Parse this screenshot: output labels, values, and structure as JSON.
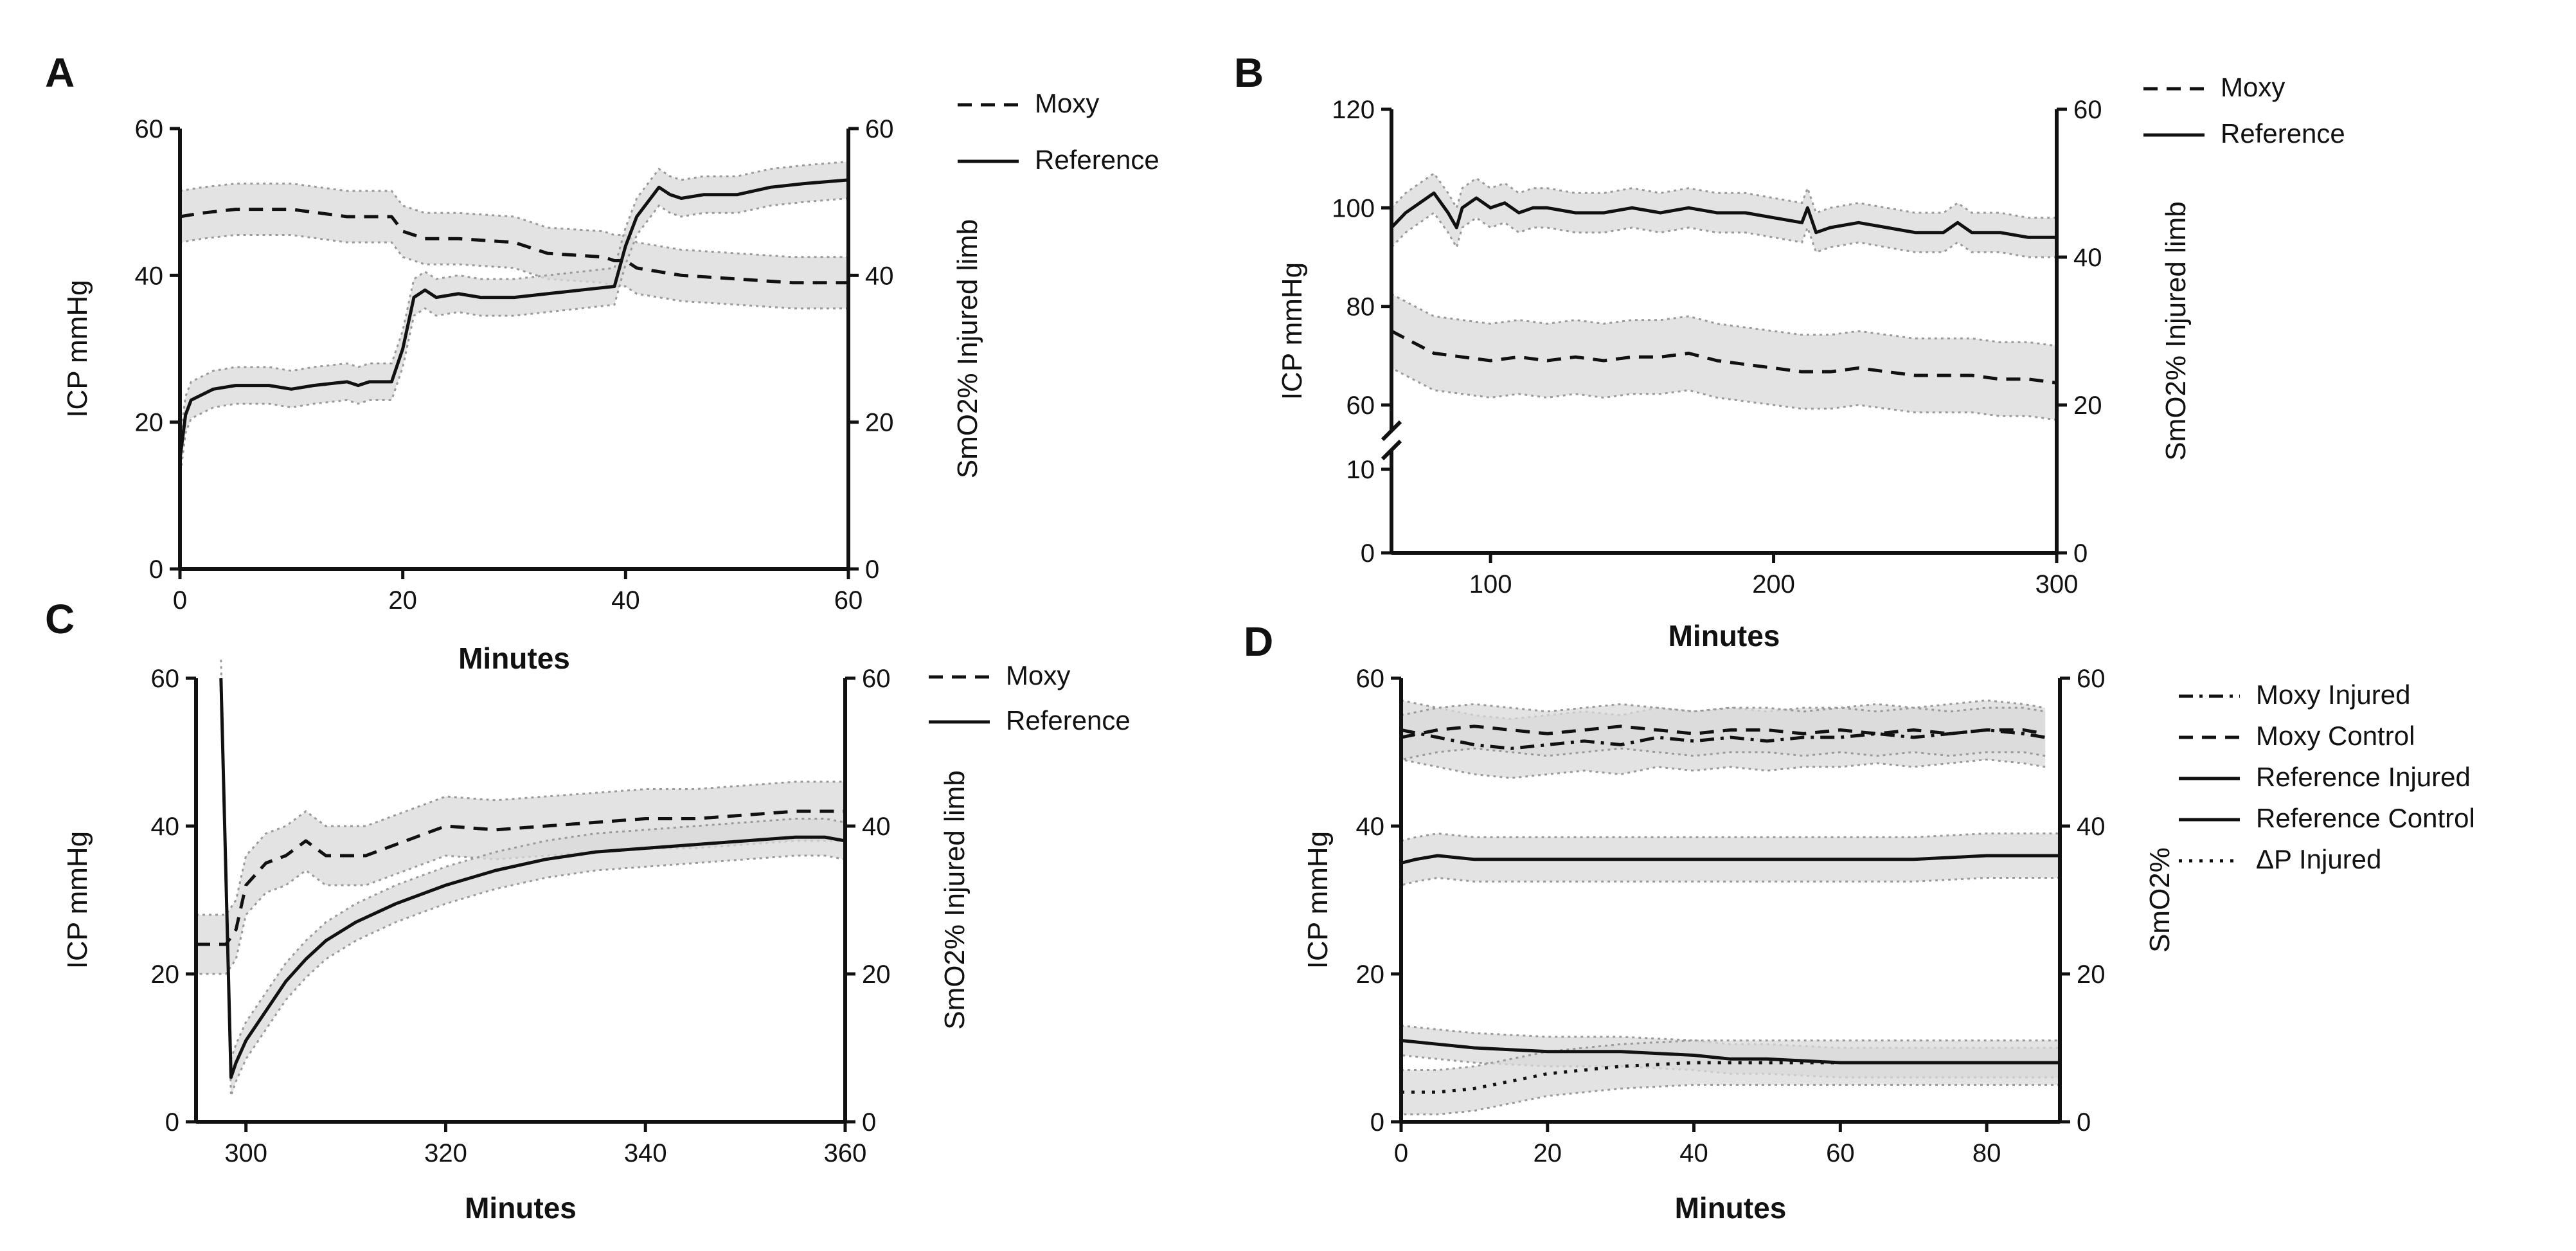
{
  "figure": {
    "panels": [
      "A",
      "B",
      "C",
      "D"
    ]
  },
  "chart_data": [
    {
      "panel": "A",
      "type": "line",
      "xlabel": "Minutes",
      "ylabel_left": "ICP mmHg",
      "ylabel_right": "SmO2% Injured limb",
      "xlim": [
        0,
        60
      ],
      "xticks": [
        "0",
        "20",
        "40",
        "60"
      ],
      "ylim_left": [
        0,
        60
      ],
      "yticks_left": [
        "0",
        "20",
        "40",
        "60"
      ],
      "ylim_right": [
        0,
        60
      ],
      "yticks_right": [
        "0",
        "20",
        "40",
        "60"
      ],
      "legend": [
        "Moxy",
        "Reference"
      ],
      "series": [
        {
          "name": "Moxy",
          "axis": "right",
          "style": "dashed",
          "x": [
            0,
            2,
            5,
            10,
            15,
            19,
            20,
            22,
            25,
            30,
            33,
            38,
            39,
            40,
            41,
            45,
            50,
            55,
            60
          ],
          "values": [
            48,
            48.5,
            49,
            49,
            48,
            48,
            46,
            45,
            45,
            44.5,
            43,
            42.5,
            42,
            42,
            41,
            40,
            39.5,
            39,
            39
          ],
          "band": 3.5
        },
        {
          "name": "Reference",
          "axis": "left",
          "style": "solid",
          "x": [
            0,
            0.5,
            1,
            3,
            5,
            8,
            10,
            12,
            15,
            16,
            17,
            19,
            20,
            21,
            22,
            23,
            25,
            27,
            30,
            33,
            36,
            39,
            40,
            41,
            43,
            44,
            45,
            47,
            50,
            53,
            56,
            60
          ],
          "values": [
            15,
            21,
            23,
            24.5,
            25,
            25,
            24.5,
            25,
            25.5,
            25,
            25.5,
            25.5,
            30,
            37,
            38,
            37,
            37.5,
            37,
            37,
            37.5,
            38,
            38.5,
            44,
            48,
            52,
            51,
            50.5,
            51,
            51,
            52,
            52.5,
            53
          ],
          "band": 2.5
        }
      ]
    },
    {
      "panel": "B",
      "type": "line",
      "xlabel": "Minutes",
      "ylabel_left": "ICP mmHg",
      "ylabel_right": "SmO2% Injured limb",
      "xlim": [
        65,
        300
      ],
      "xticks": [
        "100",
        "200",
        "300"
      ],
      "ylim_left": [
        0,
        120
      ],
      "yticks_left": [
        "0",
        "10",
        "60",
        "80",
        "100",
        "120"
      ],
      "ylim_right": [
        0,
        60
      ],
      "yticks_right": [
        "0",
        "20",
        "40",
        "60"
      ],
      "legend": [
        "Moxy",
        "Reference"
      ],
      "series": [
        {
          "name": "Reference",
          "axis": "left",
          "style": "solid",
          "x": [
            65,
            70,
            75,
            80,
            85,
            88,
            90,
            95,
            100,
            105,
            110,
            115,
            120,
            130,
            140,
            150,
            160,
            170,
            180,
            190,
            200,
            210,
            212,
            215,
            220,
            230,
            240,
            250,
            260,
            265,
            270,
            280,
            290,
            300
          ],
          "values": [
            96,
            99,
            101,
            103,
            99,
            96,
            100,
            102,
            100,
            101,
            99,
            100,
            100,
            99,
            99,
            100,
            99,
            100,
            99,
            99,
            98,
            97,
            100,
            95,
            96,
            97,
            96,
            95,
            95,
            97,
            95,
            95,
            94,
            94
          ],
          "band": 4
        },
        {
          "name": "Moxy",
          "axis": "right",
          "style": "dashed",
          "x": [
            65,
            70,
            75,
            80,
            90,
            100,
            110,
            120,
            130,
            140,
            150,
            160,
            170,
            180,
            190,
            200,
            210,
            220,
            230,
            240,
            250,
            260,
            270,
            280,
            290,
            300
          ],
          "values": [
            30,
            29,
            28,
            27,
            26.5,
            26,
            26.5,
            26,
            26.5,
            26,
            26.5,
            26.5,
            27,
            26,
            25.5,
            25,
            24.5,
            24.5,
            25,
            24.5,
            24,
            24,
            24,
            23.5,
            23.5,
            23
          ],
          "band": 5
        }
      ]
    },
    {
      "panel": "C",
      "type": "line",
      "xlabel": "Minutes",
      "ylabel_left": "ICP mmHg",
      "ylabel_right": "SmO2% Injured limb",
      "xlim": [
        295,
        360
      ],
      "xticks": [
        "300",
        "320",
        "340",
        "360"
      ],
      "ylim_left": [
        0,
        60
      ],
      "yticks_left": [
        "0",
        "20",
        "40",
        "60"
      ],
      "ylim_right": [
        0,
        60
      ],
      "yticks_right": [
        "0",
        "20",
        "40",
        "60"
      ],
      "legend": [
        "Moxy",
        "Reference"
      ],
      "series": [
        {
          "name": "Moxy",
          "axis": "right",
          "style": "dashed",
          "x": [
            295,
            298,
            299,
            300,
            302,
            304,
            306,
            308,
            312,
            316,
            320,
            325,
            330,
            335,
            340,
            345,
            350,
            355,
            360
          ],
          "values": [
            24,
            24,
            26,
            32,
            35,
            36,
            38,
            36,
            36,
            38,
            40,
            39.5,
            40,
            40.5,
            41,
            41,
            41.5,
            42,
            42
          ],
          "band": 4
        },
        {
          "name": "Reference",
          "axis": "left",
          "style": "solid",
          "x": [
            297.5,
            298.5,
            299,
            300,
            302,
            304,
            306,
            308,
            311,
            315,
            320,
            325,
            330,
            335,
            340,
            345,
            350,
            355,
            358,
            360
          ],
          "values": [
            60,
            6,
            8,
            11,
            15,
            19,
            22,
            24.5,
            27,
            29.5,
            32,
            34,
            35.5,
            36.5,
            37,
            37.5,
            38,
            38.5,
            38.5,
            38
          ],
          "band": 2.5
        }
      ]
    },
    {
      "panel": "D",
      "type": "line",
      "xlabel": "Minutes",
      "ylabel_left": "ICP mmHg",
      "ylabel_right": "SmO2%",
      "xlim": [
        0,
        90
      ],
      "xticks": [
        "0",
        "20",
        "40",
        "60",
        "80"
      ],
      "ylim_left": [
        0,
        60
      ],
      "yticks_left": [
        "0",
        "20",
        "40",
        "60"
      ],
      "ylim_right": [
        0,
        60
      ],
      "yticks_right": [
        "0",
        "20",
        "40",
        "60"
      ],
      "legend": [
        "Moxy Injured",
        "Moxy Control",
        "Reference Injured",
        "Reference Control",
        "ΔP Injured"
      ],
      "series": [
        {
          "name": "Moxy Injured",
          "axis": "right",
          "style": "dashdot",
          "x": [
            0,
            5,
            10,
            15,
            20,
            25,
            30,
            35,
            40,
            45,
            50,
            55,
            60,
            65,
            70,
            75,
            80,
            85,
            88
          ],
          "values": [
            53,
            52,
            51,
            50.5,
            51,
            51.5,
            51,
            52,
            51.5,
            52,
            51.5,
            52,
            52,
            52.5,
            52,
            52.5,
            53,
            52.5,
            52
          ],
          "band": 4
        },
        {
          "name": "Moxy Control",
          "axis": "right",
          "style": "dashed",
          "x": [
            0,
            5,
            10,
            15,
            20,
            25,
            30,
            35,
            40,
            45,
            50,
            55,
            60,
            65,
            70,
            75,
            80,
            85,
            88
          ],
          "values": [
            52,
            53,
            53.5,
            53,
            52.5,
            53,
            53.5,
            53,
            52.5,
            53,
            53,
            52.5,
            53,
            52.5,
            53,
            52.5,
            53,
            53,
            52.5
          ],
          "band": 3
        },
        {
          "name": "Reference Injured",
          "axis": "left",
          "style": "solid",
          "x": [
            0,
            2,
            5,
            10,
            20,
            30,
            40,
            50,
            60,
            70,
            80,
            90
          ],
          "values": [
            35,
            35.5,
            36,
            35.5,
            35.5,
            35.5,
            35.5,
            35.5,
            35.5,
            35.5,
            36,
            36
          ],
          "band": 3
        },
        {
          "name": "Reference Control",
          "axis": "left",
          "style": "solid",
          "x": [
            0,
            5,
            10,
            20,
            30,
            40,
            45,
            50,
            60,
            70,
            80,
            90
          ],
          "values": [
            11,
            10.5,
            10,
            9.5,
            9.5,
            9,
            8.5,
            8.5,
            8,
            8,
            8,
            8
          ],
          "band": 2
        },
        {
          "name": "ΔP Injured",
          "axis": "left",
          "style": "dotted",
          "x": [
            0,
            5,
            10,
            15,
            20,
            25,
            30,
            40,
            50,
            60,
            70,
            80,
            90
          ],
          "values": [
            4,
            4,
            4.5,
            5.5,
            6.5,
            7,
            7.5,
            8,
            8,
            8,
            8,
            8,
            8
          ],
          "band": 3
        }
      ]
    }
  ]
}
